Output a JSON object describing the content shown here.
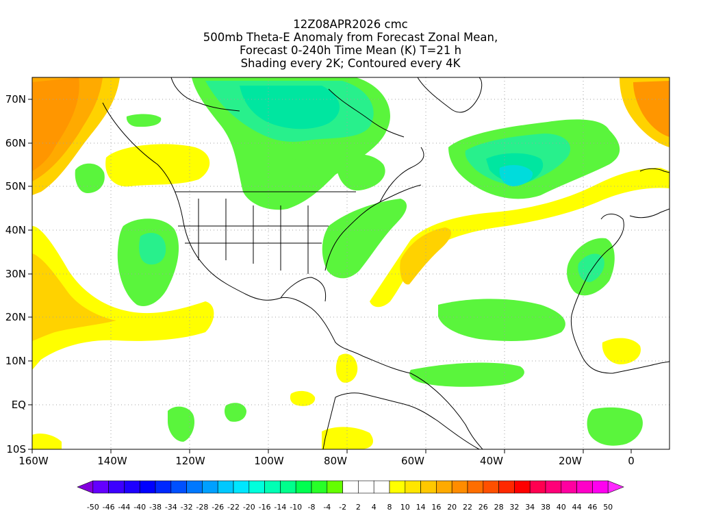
{
  "title": {
    "line1": "12Z08APR2026 cmc",
    "line2": "500mb Theta-E Anomaly from Forecast Zonal Mean,",
    "line3": "Forecast 0-240h Time Mean (K) T=21 h",
    "line4": "Shading every 2K; Contoured every 4K"
  },
  "axes": {
    "lon_labels": [
      "160W",
      "140W",
      "120W",
      "100W",
      "80W",
      "60W",
      "40W",
      "20W",
      "0"
    ],
    "lat_labels": [
      "70N",
      "60N",
      "50N",
      "40N",
      "30N",
      "20N",
      "10N",
      "EQ",
      "10S"
    ]
  },
  "colorbar": {
    "labels": [
      "-50",
      "-46",
      "-44",
      "-40",
      "-38",
      "-34",
      "-32",
      "-28",
      "-26",
      "-22",
      "-20",
      "-16",
      "-14",
      "-10",
      "-8",
      "-4",
      "-2",
      "2",
      "4",
      "8",
      "10",
      "14",
      "16",
      "20",
      "22",
      "26",
      "28",
      "32",
      "34",
      "38",
      "40",
      "44",
      "46",
      "50"
    ],
    "colors": [
      "#8200dc",
      "#6400ff",
      "#3c00ff",
      "#1e00ff",
      "#0000ff",
      "#0028ff",
      "#0050ff",
      "#0078ff",
      "#00a0ff",
      "#00c8ff",
      "#00e6ff",
      "#00ffdc",
      "#00ffb4",
      "#00ff8c",
      "#00ff50",
      "#28ff28",
      "#64ff00",
      "#ffffff",
      "#ffffff",
      "#ffffff",
      "#ffff00",
      "#ffe600",
      "#ffc800",
      "#ffaa00",
      "#ff8c00",
      "#ff6e00",
      "#ff5000",
      "#ff2800",
      "#ff0000",
      "#ff0050",
      "#ff0078",
      "#ff00a0",
      "#ff00c8",
      "#ff00f0",
      "#ff28ff"
    ]
  },
  "colors": {
    "background": "#ffffff",
    "green_shading": "#5af53c",
    "teal_shading": "#00e6a0",
    "yellow_shading": "#ffff00",
    "gold_shading": "#ffd200",
    "orange_shading": "#ff9600",
    "coastline": "#000000",
    "grid": "#a0a0a0"
  }
}
